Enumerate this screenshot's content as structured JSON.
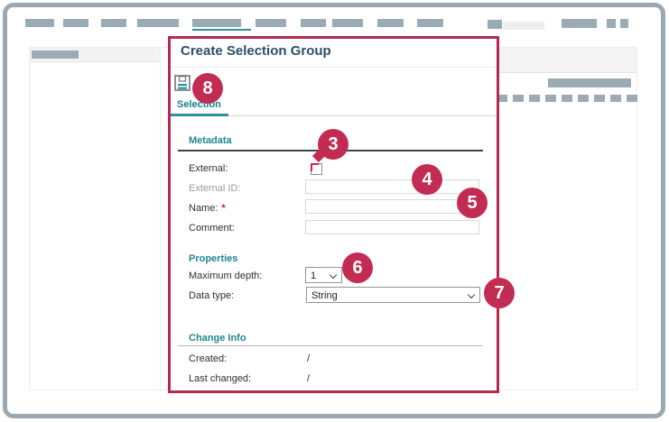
{
  "colors": {
    "frame_gray_blue": "#9aa9b1",
    "accent_teal": "#2e9296",
    "accent_crimson": "#c22c52",
    "dialog_border_crimson": "#b5294e",
    "title_text": "#2b4e66",
    "heading_teal": "#1f868b"
  },
  "dialog": {
    "title": "Create Selection Group",
    "tabs": [
      {
        "label": "Selection",
        "active": true
      }
    ],
    "metadata": {
      "heading": "Metadata",
      "external_label": "External:",
      "external_checked": false,
      "external_id_label": "External ID:",
      "external_id_value": "",
      "name_label": "Name:",
      "required_marker": "*",
      "name_value": "",
      "comment_label": "Comment:",
      "comment_value": ""
    },
    "properties": {
      "heading": "Properties",
      "maximum_depth_label": "Maximum depth:",
      "maximum_depth_value": "1",
      "data_type_label": "Data type:",
      "data_type_value": "String"
    },
    "change_info": {
      "heading": "Change Info",
      "created_label": "Created:",
      "created_value": "/",
      "last_changed_label": "Last changed:",
      "last_changed_value": "/"
    }
  },
  "callouts": [
    {
      "label": "3",
      "target": "external-checkbox"
    },
    {
      "label": "4",
      "target": "external-id-input"
    },
    {
      "label": "5",
      "target": "name-input"
    },
    {
      "label": "6",
      "target": "maximum-depth-select"
    },
    {
      "label": "7",
      "target": "data-type-select"
    },
    {
      "label": "8",
      "target": "save-button"
    }
  ]
}
